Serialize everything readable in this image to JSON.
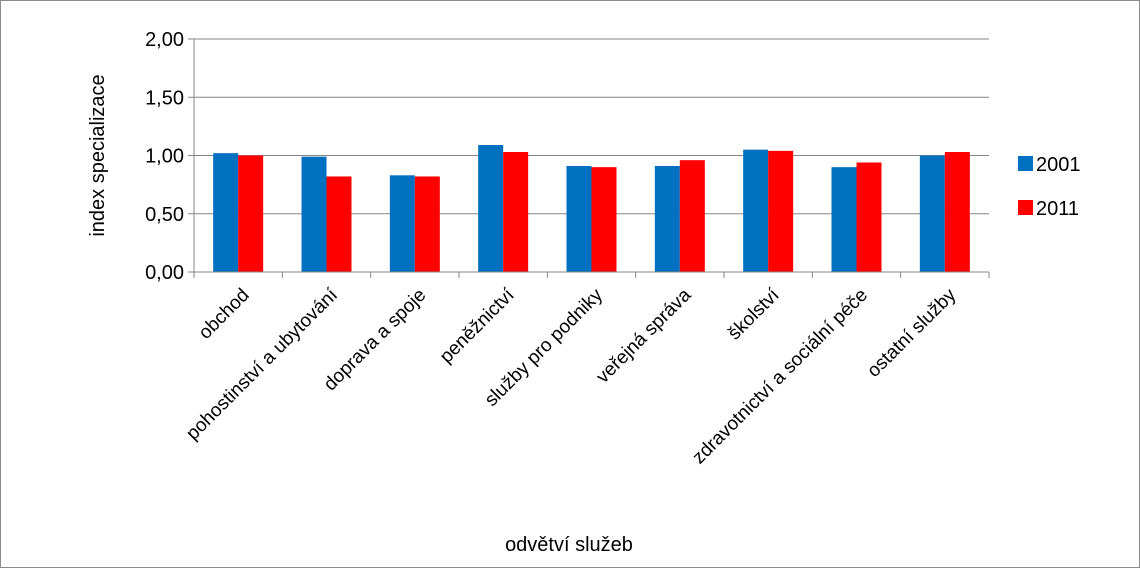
{
  "chart_data": {
    "type": "bar",
    "title": "",
    "xlabel": "odvětví služeb",
    "ylabel": "index specializace",
    "ylim": [
      0,
      2
    ],
    "yticks": [
      "0,00",
      "0,50",
      "1,00",
      "1,50",
      "2,00"
    ],
    "ytick_values": [
      0,
      0.5,
      1,
      1.5,
      2
    ],
    "grid": true,
    "legend_position": "right",
    "categories": [
      "obchod",
      "pohostinství a ubytování",
      "doprava a spoje",
      "peněžnictví",
      "služby pro podniky",
      "veřejná správa",
      "školství",
      "zdravotnictví a sociální péče",
      "ostatní služby"
    ],
    "series": [
      {
        "name": "2001",
        "color": "#0070C0",
        "values": [
          1.02,
          0.99,
          0.83,
          1.09,
          0.91,
          0.91,
          1.05,
          0.9,
          1.0
        ]
      },
      {
        "name": "2011",
        "color": "#FF0000",
        "values": [
          1.0,
          0.82,
          0.82,
          1.03,
          0.9,
          0.96,
          1.04,
          0.94,
          1.03
        ]
      }
    ]
  }
}
